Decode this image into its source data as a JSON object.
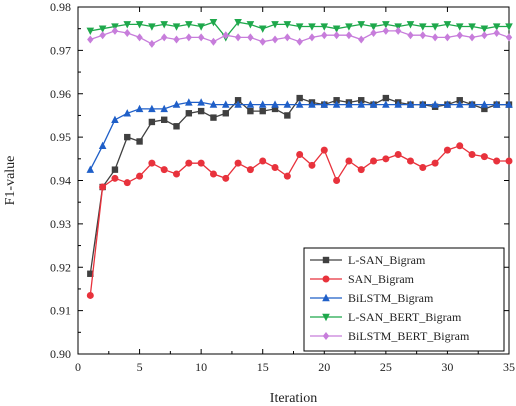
{
  "chart_data": {
    "type": "line",
    "title": "",
    "xlabel": "Iteration",
    "ylabel": "F1-value",
    "xlim": [
      0,
      35
    ],
    "ylim": [
      0.9,
      0.98
    ],
    "xticks": [
      0,
      5,
      10,
      15,
      20,
      25,
      30,
      35
    ],
    "xtick_labels": [
      "0",
      "5",
      "10",
      "15",
      "20",
      "25",
      "30",
      "35"
    ],
    "yticks": [
      0.9,
      0.91,
      0.92,
      0.93,
      0.94,
      0.95,
      0.96,
      0.97,
      0.98
    ],
    "ytick_labels": [
      "0.90",
      "0.91",
      "0.92",
      "0.93",
      "0.94",
      "0.95",
      "0.96",
      "0.97",
      "0.98"
    ],
    "grid": false,
    "legend_position": "bottom-right",
    "x": [
      1,
      2,
      3,
      4,
      5,
      6,
      7,
      8,
      9,
      10,
      11,
      12,
      13,
      14,
      15,
      16,
      17,
      18,
      19,
      20,
      21,
      22,
      23,
      24,
      25,
      26,
      27,
      28,
      29,
      30,
      31,
      32,
      33,
      34,
      35
    ],
    "series": [
      {
        "name": "L-SAN_Bigram",
        "color": "#404040",
        "marker": "square",
        "values": [
          0.9185,
          0.9385,
          0.9425,
          0.95,
          0.949,
          0.9535,
          0.954,
          0.9525,
          0.9555,
          0.956,
          0.9545,
          0.9555,
          0.9585,
          0.956,
          0.956,
          0.9565,
          0.955,
          0.959,
          0.958,
          0.9575,
          0.9585,
          0.958,
          0.9585,
          0.9575,
          0.959,
          0.958,
          0.9575,
          0.9575,
          0.957,
          0.9575,
          0.9585,
          0.9575,
          0.9565,
          0.9575,
          0.9575
        ]
      },
      {
        "name": "SAN_Bigram",
        "color": "#e8323c",
        "marker": "circle",
        "values": [
          0.9135,
          0.9385,
          0.9405,
          0.9395,
          0.941,
          0.944,
          0.9425,
          0.9415,
          0.944,
          0.944,
          0.9415,
          0.9405,
          0.944,
          0.9425,
          0.9445,
          0.943,
          0.941,
          0.946,
          0.9435,
          0.947,
          0.94,
          0.9445,
          0.9425,
          0.9445,
          0.945,
          0.946,
          0.9445,
          0.943,
          0.944,
          0.947,
          0.948,
          0.946,
          0.9455,
          0.9445,
          0.9445
        ]
      },
      {
        "name": "BiLSTM_Bigram",
        "color": "#1f5fc8",
        "marker": "triangle",
        "values": [
          0.9425,
          0.948,
          0.954,
          0.9555,
          0.9565,
          0.9565,
          0.9565,
          0.9575,
          0.958,
          0.958,
          0.9575,
          0.9575,
          0.9575,
          0.9575,
          0.9575,
          0.9575,
          0.9575,
          0.9575,
          0.9575,
          0.9575,
          0.9575,
          0.9575,
          0.9575,
          0.9575,
          0.9575,
          0.9575,
          0.9575,
          0.9575,
          0.9575,
          0.9575,
          0.9575,
          0.9575,
          0.9575,
          0.9575,
          0.9575
        ]
      },
      {
        "name": "L-SAN_BERT_Bigram",
        "color": "#1ea84b",
        "marker": "triangle-down",
        "values": [
          0.9745,
          0.975,
          0.9755,
          0.976,
          0.976,
          0.9755,
          0.976,
          0.9755,
          0.976,
          0.9755,
          0.9765,
          0.973,
          0.9765,
          0.976,
          0.975,
          0.976,
          0.976,
          0.9755,
          0.9755,
          0.9755,
          0.975,
          0.9755,
          0.976,
          0.9755,
          0.976,
          0.9755,
          0.976,
          0.9755,
          0.9755,
          0.976,
          0.9755,
          0.9755,
          0.975,
          0.9755,
          0.9755
        ]
      },
      {
        "name": "BiLSTM_BERT_Bigram",
        "color": "#c77ddb",
        "marker": "diamond",
        "values": [
          0.9725,
          0.9735,
          0.9745,
          0.974,
          0.973,
          0.9715,
          0.973,
          0.9725,
          0.973,
          0.973,
          0.972,
          0.9735,
          0.973,
          0.973,
          0.972,
          0.9725,
          0.973,
          0.972,
          0.973,
          0.9735,
          0.9735,
          0.9735,
          0.9725,
          0.974,
          0.9745,
          0.9745,
          0.9735,
          0.9735,
          0.973,
          0.973,
          0.9735,
          0.973,
          0.9735,
          0.974,
          0.973
        ]
      }
    ]
  }
}
